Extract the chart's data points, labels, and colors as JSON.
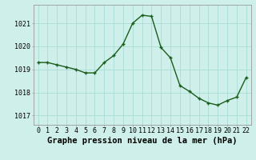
{
  "x": [
    0,
    1,
    2,
    3,
    4,
    5,
    6,
    7,
    8,
    9,
    10,
    11,
    12,
    13,
    14,
    15,
    16,
    17,
    18,
    19,
    20,
    21,
    22
  ],
  "y": [
    1019.3,
    1019.3,
    1019.2,
    1019.1,
    1019.0,
    1018.85,
    1018.85,
    1019.3,
    1019.6,
    1020.1,
    1021.0,
    1021.35,
    1021.3,
    1019.95,
    1019.5,
    1018.3,
    1018.05,
    1017.75,
    1017.55,
    1017.45,
    1017.65,
    1017.8,
    1018.65
  ],
  "line_color": "#1a5c1a",
  "marker": "+",
  "marker_size": 3,
  "line_width": 1.0,
  "background_color": "#cff0ea",
  "grid_color": "#a8ddd6",
  "xlabel": "Graphe pression niveau de la mer (hPa)",
  "xlabel_fontsize": 7.5,
  "tick_fontsize": 6,
  "ylim": [
    1016.6,
    1021.8
  ],
  "yticks": [
    1017,
    1018,
    1019,
    1020,
    1021
  ],
  "xticks": [
    0,
    1,
    2,
    3,
    4,
    5,
    6,
    7,
    8,
    9,
    10,
    11,
    12,
    13,
    14,
    15,
    16,
    17,
    18,
    19,
    20,
    21,
    22
  ]
}
